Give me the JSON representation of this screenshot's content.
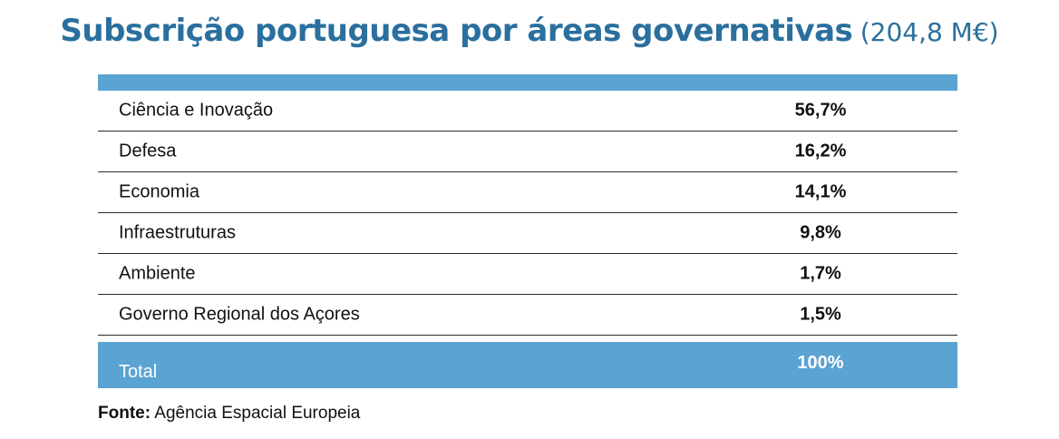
{
  "title": "Subscrição portuguesa por áreas governativas",
  "subtitle": "(204,8 M€)",
  "accent_color": "#5ba3d2",
  "title_color": "#2a6f9e",
  "chart_data": {
    "type": "table",
    "title": "Subscrição portuguesa por áreas governativas",
    "subtitle": "(204,8 M€)",
    "rows": [
      {
        "label": "Ciência e Inovação",
        "value": "56,7%"
      },
      {
        "label": "Defesa",
        "value": "16,2%"
      },
      {
        "label": "Economia",
        "value": "14,1%"
      },
      {
        "label": "Infraestruturas",
        "value": "9,8%"
      },
      {
        "label": "Ambiente",
        "value": "1,7%"
      },
      {
        "label": "Governo Regional dos Açores",
        "value": "1,5%"
      }
    ],
    "total": {
      "label": "Total",
      "value": "100%"
    }
  },
  "source": {
    "label": "Fonte:",
    "text": "Agência Espacial Europeia"
  }
}
